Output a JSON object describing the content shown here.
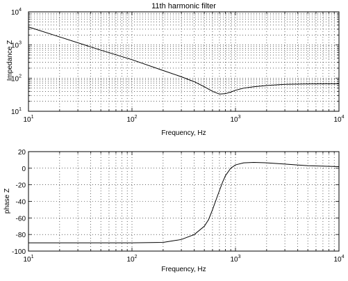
{
  "chart_data": [
    {
      "type": "line",
      "title": "11th harmonic filter",
      "xlabel": "Frequency, Hz",
      "ylabel": "Impedance Z",
      "x_scale": "log",
      "y_scale": "log",
      "xlim": [
        10,
        10000
      ],
      "ylim": [
        10,
        10000
      ],
      "grid": true,
      "x_ticks": [
        {
          "value": 10,
          "base": "10",
          "exp": "1"
        },
        {
          "value": 100,
          "base": "10",
          "exp": "2"
        },
        {
          "value": 1000,
          "base": "10",
          "exp": "3"
        },
        {
          "value": 10000,
          "base": "10",
          "exp": "4"
        }
      ],
      "y_ticks": [
        {
          "value": 10,
          "base": "10",
          "exp": "1"
        },
        {
          "value": 100,
          "base": "10",
          "exp": "2"
        },
        {
          "value": 1000,
          "base": "10",
          "exp": "3"
        },
        {
          "value": 10000,
          "base": "10",
          "exp": "4"
        }
      ],
      "series": [
        {
          "x": [
            10,
            20,
            50,
            100,
            200,
            300,
            400,
            500,
            600,
            700,
            800,
            900,
            1000,
            1200,
            1500,
            2000,
            3000,
            5000,
            10000
          ],
          "y": [
            3500,
            1750,
            700,
            360,
            170,
            110,
            78,
            55,
            40,
            33,
            34,
            38,
            43,
            50,
            55,
            60,
            65,
            67,
            68
          ]
        }
      ]
    },
    {
      "type": "line",
      "title": "",
      "xlabel": "Frequency, Hz",
      "ylabel": "phase Z",
      "x_scale": "log",
      "y_scale": "linear",
      "xlim": [
        10,
        10000
      ],
      "ylim": [
        -100,
        20
      ],
      "grid": true,
      "x_ticks": [
        {
          "value": 10,
          "base": "10",
          "exp": "1"
        },
        {
          "value": 100,
          "base": "10",
          "exp": "2"
        },
        {
          "value": 1000,
          "base": "10",
          "exp": "3"
        },
        {
          "value": 10000,
          "base": "10",
          "exp": "4"
        }
      ],
      "y_ticks": [
        {
          "value": 20,
          "label": "20"
        },
        {
          "value": 0,
          "label": "0"
        },
        {
          "value": -20,
          "label": "-20"
        },
        {
          "value": -40,
          "label": "-40"
        },
        {
          "value": -60,
          "label": "-60"
        },
        {
          "value": -80,
          "label": "-80"
        },
        {
          "value": -100,
          "label": "-100"
        }
      ],
      "series": [
        {
          "x": [
            10,
            50,
            100,
            200,
            300,
            400,
            500,
            550,
            600,
            650,
            700,
            750,
            800,
            900,
            1000,
            1200,
            1500,
            2000,
            3000,
            5000,
            10000
          ],
          "y": [
            -90,
            -90,
            -90,
            -89.5,
            -86,
            -80,
            -70,
            -62,
            -50,
            -38,
            -27,
            -17,
            -9,
            0,
            4,
            6.5,
            7,
            6.5,
            5,
            3,
            2
          ]
        }
      ]
    }
  ]
}
